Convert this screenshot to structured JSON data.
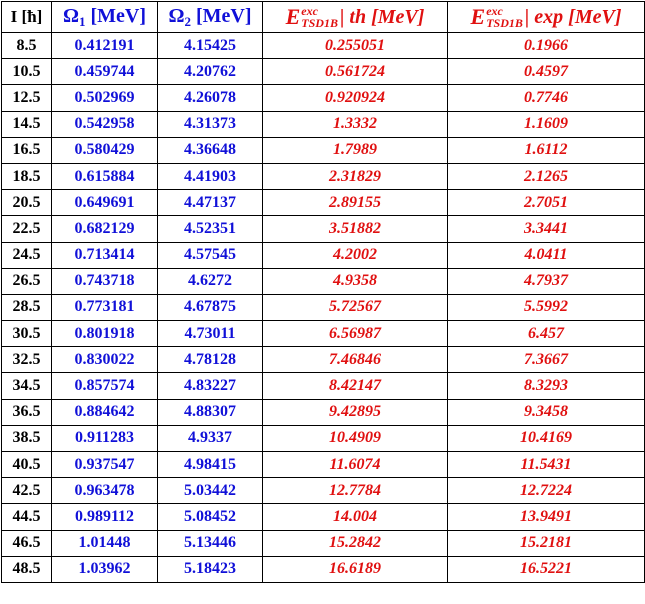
{
  "header": {
    "col_i": "I [ħ]",
    "omega1_symbol": "Ω",
    "omega1_sub": "1",
    "omega1_unit": "[MeV]",
    "omega2_symbol": "Ω",
    "omega2_sub": "2",
    "omega2_unit": "[MeV]",
    "e_symbol": "E",
    "e_sup": "exc",
    "e_sub": "TSD1B",
    "th_rest": "| th [MeV]",
    "exp_rest": "| exp [MeV]"
  },
  "rows": [
    {
      "i": "8.5",
      "o1": "0.412191",
      "o2": "4.15425",
      "th": "0.255051",
      "exp": "0.1966"
    },
    {
      "i": "10.5",
      "o1": "0.459744",
      "o2": "4.20762",
      "th": "0.561724",
      "exp": "0.4597"
    },
    {
      "i": "12.5",
      "o1": "0.502969",
      "o2": "4.26078",
      "th": "0.920924",
      "exp": "0.7746"
    },
    {
      "i": "14.5",
      "o1": "0.542958",
      "o2": "4.31373",
      "th": "1.3332",
      "exp": "1.1609"
    },
    {
      "i": "16.5",
      "o1": "0.580429",
      "o2": "4.36648",
      "th": "1.7989",
      "exp": "1.6112"
    },
    {
      "i": "18.5",
      "o1": "0.615884",
      "o2": "4.41903",
      "th": "2.31829",
      "exp": "2.1265"
    },
    {
      "i": "20.5",
      "o1": "0.649691",
      "o2": "4.47137",
      "th": "2.89155",
      "exp": "2.7051"
    },
    {
      "i": "22.5",
      "o1": "0.682129",
      "o2": "4.52351",
      "th": "3.51882",
      "exp": "3.3441"
    },
    {
      "i": "24.5",
      "o1": "0.713414",
      "o2": "4.57545",
      "th": "4.2002",
      "exp": "4.0411"
    },
    {
      "i": "26.5",
      "o1": "0.743718",
      "o2": "4.6272",
      "th": "4.9358",
      "exp": "4.7937"
    },
    {
      "i": "28.5",
      "o1": "0.773181",
      "o2": "4.67875",
      "th": "5.72567",
      "exp": "5.5992"
    },
    {
      "i": "30.5",
      "o1": "0.801918",
      "o2": "4.73011",
      "th": "6.56987",
      "exp": "6.457"
    },
    {
      "i": "32.5",
      "o1": "0.830022",
      "o2": "4.78128",
      "th": "7.46846",
      "exp": "7.3667"
    },
    {
      "i": "34.5",
      "o1": "0.857574",
      "o2": "4.83227",
      "th": "8.42147",
      "exp": "8.3293"
    },
    {
      "i": "36.5",
      "o1": "0.884642",
      "o2": "4.88307",
      "th": "9.42895",
      "exp": "9.3458"
    },
    {
      "i": "38.5",
      "o1": "0.911283",
      "o2": "4.9337",
      "th": "10.4909",
      "exp": "10.4169"
    },
    {
      "i": "40.5",
      "o1": "0.937547",
      "o2": "4.98415",
      "th": "11.6074",
      "exp": "11.5431"
    },
    {
      "i": "42.5",
      "o1": "0.963478",
      "o2": "5.03442",
      "th": "12.7784",
      "exp": "12.7224"
    },
    {
      "i": "44.5",
      "o1": "0.989112",
      "o2": "5.08452",
      "th": "14.004",
      "exp": "13.9491"
    },
    {
      "i": "46.5",
      "o1": "1.01448",
      "o2": "5.13446",
      "th": "15.2842",
      "exp": "15.2181"
    },
    {
      "i": "48.5",
      "o1": "1.03962",
      "o2": "5.18423",
      "th": "16.6189",
      "exp": "16.5221"
    }
  ],
  "colors": {
    "index_text": "#000000",
    "omega_text": "#1010d8",
    "energy_text": "#e01010",
    "border": "#000000"
  }
}
